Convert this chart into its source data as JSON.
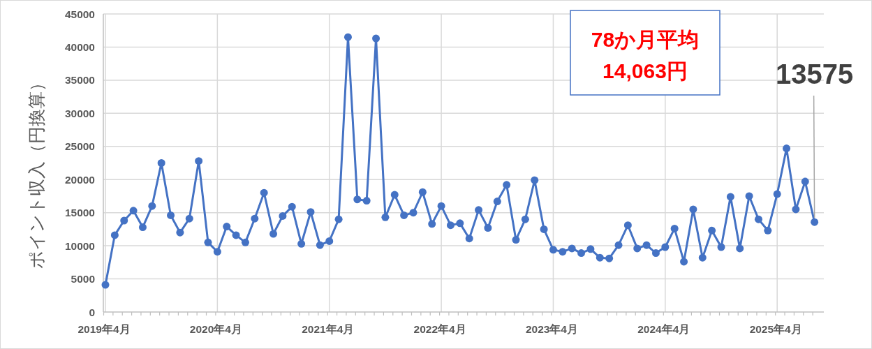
{
  "chart_data": {
    "type": "line",
    "ylabel": "ポイント収入（円換算）",
    "categories": [
      "2019年4月",
      null,
      null,
      null,
      null,
      null,
      null,
      null,
      null,
      null,
      null,
      null,
      "2020年4月",
      null,
      null,
      null,
      null,
      null,
      null,
      null,
      null,
      null,
      null,
      null,
      "2021年4月",
      null,
      null,
      null,
      null,
      null,
      null,
      null,
      null,
      null,
      null,
      null,
      "2022年4月",
      null,
      null,
      null,
      null,
      null,
      null,
      null,
      null,
      null,
      null,
      null,
      "2023年4月",
      null,
      null,
      null,
      null,
      null,
      null,
      null,
      null,
      null,
      null,
      null,
      "2024年4月",
      null,
      null,
      null,
      null,
      null,
      null,
      null,
      null,
      null,
      null,
      null,
      "2025年4月",
      null,
      null,
      null,
      null
    ],
    "series": [
      {
        "color": "#4472c4",
        "values": [
          4100,
          11600,
          13800,
          15300,
          12800,
          16000,
          22500,
          14600,
          12000,
          14100,
          22800,
          10500,
          9100,
          12900,
          11600,
          10500,
          14100,
          18000,
          11800,
          14500,
          15900,
          10300,
          15100,
          10100,
          10700,
          14000,
          41500,
          17000,
          16800,
          41300,
          14300,
          17700,
          14600,
          15000,
          18100,
          13300,
          16000,
          13100,
          13400,
          11100,
          15400,
          12700,
          16700,
          19200,
          10900,
          14000,
          19900,
          12500,
          9400,
          9100,
          9600,
          8900,
          9500,
          8200,
          8100,
          10100,
          13100,
          9600,
          10100,
          8900,
          9800,
          12600,
          7600,
          15500,
          8200,
          12300,
          9800,
          17400,
          9600,
          17500,
          14000,
          12300,
          17800,
          24700,
          15500,
          19700,
          13575
        ],
        "value_labels": [
          null,
          null,
          null,
          null,
          null,
          null,
          null,
          null,
          null,
          null,
          null,
          null,
          null,
          null,
          null,
          null,
          null,
          null,
          null,
          null,
          null,
          null,
          null,
          null,
          null,
          null,
          null,
          null,
          null,
          null,
          null,
          null,
          null,
          null,
          null,
          null,
          null,
          null,
          null,
          null,
          null,
          null,
          null,
          null,
          null,
          null,
          null,
          null,
          null,
          null,
          null,
          null,
          null,
          null,
          null,
          null,
          null,
          null,
          null,
          null,
          null,
          null,
          null,
          null,
          null,
          null,
          null,
          null,
          null,
          null,
          null,
          null,
          null,
          null,
          null,
          null,
          "13575"
        ]
      }
    ],
    "ylim": [
      0,
      45000
    ],
    "yticks": [
      0,
      5000,
      10000,
      15000,
      20000,
      25000,
      30000,
      35000,
      40000,
      45000
    ],
    "grid": true,
    "marker": "circle",
    "line_style": "solid",
    "annotations": [
      "78か月平均\n14,063円"
    ]
  }
}
